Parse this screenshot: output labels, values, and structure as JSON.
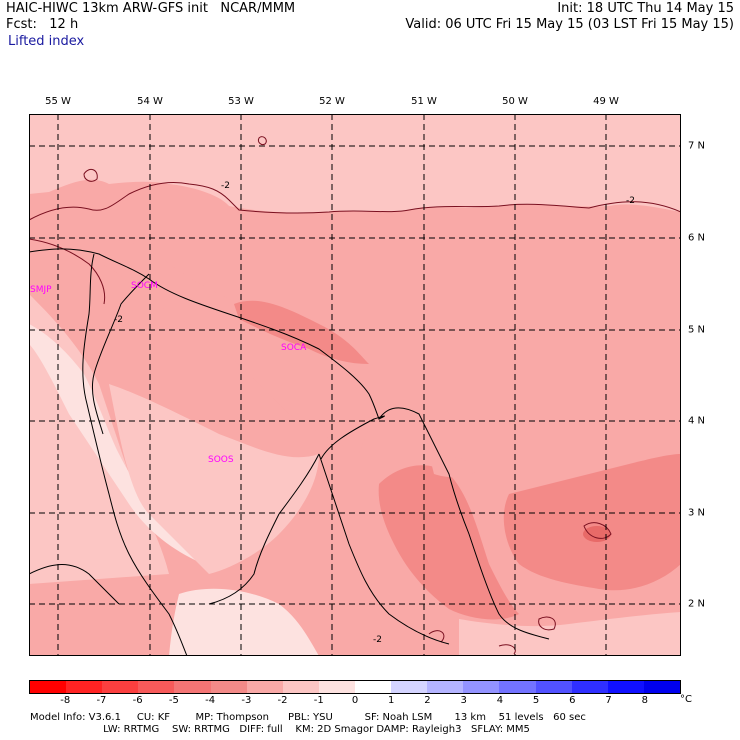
{
  "header": {
    "line1_left": "HAIC-HIWC 13km ARW-GFS init   NCAR/MMM",
    "line2_left": "Fcst:   12 h",
    "line1_right": "Init: 18 UTC Thu 14 May 15",
    "line2_right": "Valid: 06 UTC Fri 15 May 15 (03 LST Fri 15 May 15)",
    "variable": "Lifted index"
  },
  "map": {
    "lon_labels": [
      "55 W",
      "54 W",
      "53 W",
      "52 W",
      "51 W",
      "50 W",
      "49 W"
    ],
    "lat_labels": [
      "7 N",
      "6 N",
      "5 N",
      "4 N",
      "3 N",
      "2 N"
    ],
    "stations": [
      "SMJP",
      "SOCM",
      "SOCA",
      "SOOS"
    ],
    "contour_labels": [
      "-2",
      "-2",
      "-2",
      "-2"
    ],
    "colors": {
      "level_-1": "#fde2e0",
      "level_-2": "#fcc6c4",
      "level_-3": "#f9a9a7",
      "level_-4": "#f38a88",
      "station": "#ff00ff"
    }
  },
  "colorbar": {
    "labels": [
      "-8",
      "-7",
      "-6",
      "-5",
      "-4",
      "-3",
      "-2",
      "-1",
      "0",
      "1",
      "2",
      "3",
      "4",
      "5",
      "6",
      "7",
      "8"
    ],
    "unit": "°C",
    "colors": [
      "#ff0000",
      "#ff2323",
      "#fb3f3f",
      "#f75a5a",
      "#f47575",
      "#f38a88",
      "#f9a9a7",
      "#fcc6c4",
      "#fde2e0",
      "#ffffff",
      "#d4d4ff",
      "#b4b4ff",
      "#9393ff",
      "#7373ff",
      "#5252ff",
      "#2f2fff",
      "#1010ff",
      "#0000ee"
    ]
  },
  "footer": {
    "line1": "Model Info: V3.6.1     CU: KF        MP: Thompson      PBL: YSU          SF: Noah LSM       13 km    51 levels   60 sec",
    "line2": "                       LW: RRTMG    SW: RRTMG   DIFF: full    KM: 2D Smagor DAMP: Rayleigh3   SFLAY: MM5"
  }
}
